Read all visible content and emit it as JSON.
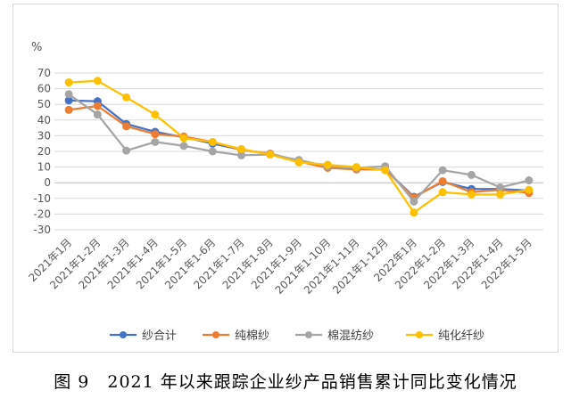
{
  "chart_data": {
    "type": "line",
    "unit_label": "%",
    "ylim": [
      -30,
      70
    ],
    "ytick_step": 10,
    "grid": true,
    "legend_position": "bottom",
    "categories": [
      "2021年1月",
      "2021年1-2月",
      "2021年1-3月",
      "2021年1-4月",
      "2021年1-5月",
      "2021年1-6月",
      "2021年1-7月",
      "2021年1-8月",
      "2021年1-9月",
      "2021年1-10月",
      "2021年1-11月",
      "2021年1-12月",
      "2022年1月",
      "2022年1-2月",
      "2022年1-3月",
      "2022年1-4月",
      "2022年1-5月"
    ],
    "series": [
      {
        "name": "纱合计",
        "color": "#4472c4",
        "values": [
          52.5,
          52,
          37.5,
          32.5,
          29,
          25,
          21,
          18.5,
          14,
          10,
          9,
          8.5,
          -9,
          0.5,
          -4,
          -4,
          -5
        ]
      },
      {
        "name": "纯棉纱",
        "color": "#ed7d31",
        "values": [
          46.5,
          49,
          36,
          31,
          29.5,
          26,
          21,
          18.5,
          13.5,
          9.5,
          8.5,
          8.5,
          -9.5,
          1,
          -6,
          -4.5,
          -6.5
        ]
      },
      {
        "name": "棉混纺纱",
        "color": "#a5a5a5",
        "values": [
          56.5,
          43.5,
          20.5,
          26,
          23.5,
          20,
          17.5,
          18,
          14.5,
          10.5,
          9.5,
          10.5,
          -12,
          8,
          5,
          -3,
          1.5
        ]
      },
      {
        "name": "纯化纤纱",
        "color": "#ffc000",
        "values": [
          64,
          65,
          54.5,
          43.5,
          28.5,
          26,
          21.5,
          18,
          13,
          11.5,
          10,
          8,
          -19,
          -6,
          -7.5,
          -7.5,
          -4.5
        ]
      }
    ]
  },
  "caption": "图 9　2021 年以来跟踪企业纱产品销售累计同比变化情况"
}
